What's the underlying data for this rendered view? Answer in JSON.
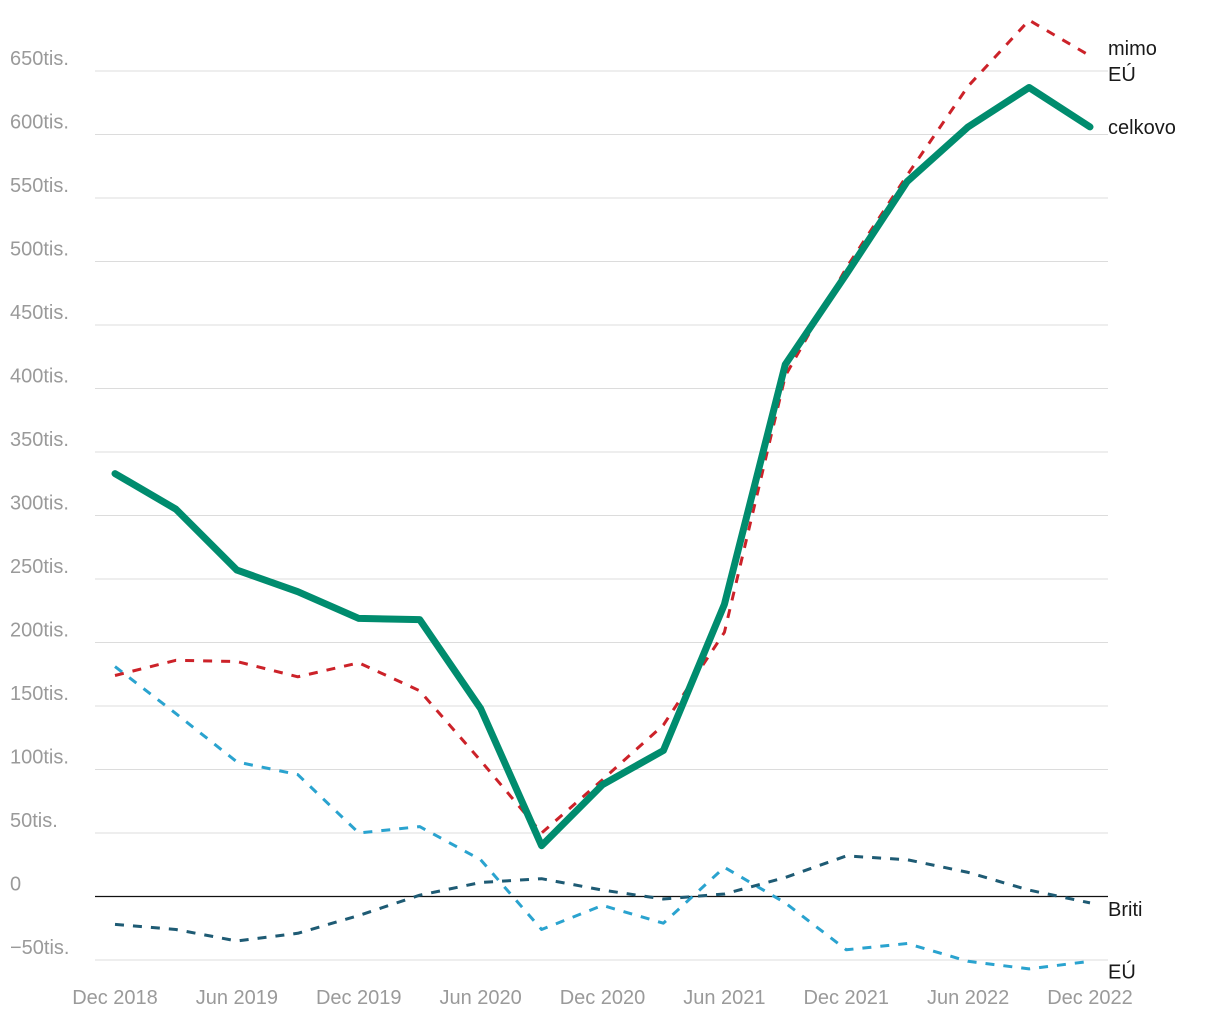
{
  "chart_data": {
    "type": "line",
    "title": "",
    "xlabel": "",
    "ylabel": "",
    "ylim": [
      -50000,
      650000
    ],
    "y_ticks": [
      {
        "value": 650000,
        "label": "650tis."
      },
      {
        "value": 600000,
        "label": "600tis."
      },
      {
        "value": 550000,
        "label": "550tis."
      },
      {
        "value": 500000,
        "label": "500tis."
      },
      {
        "value": 450000,
        "label": "450tis."
      },
      {
        "value": 400000,
        "label": "400tis."
      },
      {
        "value": 350000,
        "label": "350tis."
      },
      {
        "value": 300000,
        "label": "300tis."
      },
      {
        "value": 250000,
        "label": "250tis."
      },
      {
        "value": 200000,
        "label": "200tis."
      },
      {
        "value": 150000,
        "label": "150tis."
      },
      {
        "value": 100000,
        "label": "100tis."
      },
      {
        "value": 50000,
        "label": "50tis."
      },
      {
        "value": 0,
        "label": "0"
      },
      {
        "value": -50000,
        "label": "−50tis."
      }
    ],
    "x": [
      "Dec 2018",
      "Mar 2019",
      "Jun 2019",
      "Sep 2019",
      "Dec 2019",
      "Mar 2020",
      "Jun 2020",
      "Sep 2020",
      "Dec 2020",
      "Mar 2021",
      "Jun 2021",
      "Sep 2021",
      "Dec 2021",
      "Mar 2022",
      "Jun 2022",
      "Sep 2022",
      "Dec 2022"
    ],
    "x_tick_labels": [
      "Dec 2018",
      "Jun 2019",
      "Dec 2019",
      "Jun 2020",
      "Dec 2020",
      "Jun 2021",
      "Dec 2021",
      "Jun 2022",
      "Dec 2022"
    ],
    "grid": true,
    "series": [
      {
        "name": "mimo EÚ",
        "label_lines": [
          "mimo",
          "EÚ"
        ],
        "color": "#cc2229",
        "dash": "dashed",
        "width": 3,
        "values": [
          174000,
          186000,
          185000,
          173000,
          184000,
          162000,
          107000,
          50000,
          92000,
          135000,
          208000,
          410000,
          495000,
          568000,
          638000,
          690000,
          662000
        ]
      },
      {
        "name": "celkovo",
        "label_lines": [
          "celkovo"
        ],
        "color": "#008c6e",
        "dash": "solid",
        "width": 7,
        "values": [
          333000,
          305000,
          257000,
          240000,
          219000,
          218000,
          148000,
          40000,
          88000,
          115000,
          230000,
          419000,
          490000,
          563000,
          606000,
          637000,
          606000
        ]
      },
      {
        "name": "Briti",
        "label_lines": [
          "Briti"
        ],
        "color": "#1e5b74",
        "dash": "dashed",
        "width": 3,
        "values": [
          -22000,
          -26000,
          -35000,
          -29000,
          -15000,
          1000,
          11000,
          14000,
          5000,
          -2000,
          2000,
          15000,
          32000,
          29000,
          19000,
          5000,
          -5000
        ]
      },
      {
        "name": "EÚ",
        "label_lines": [
          "EÚ"
        ],
        "color": "#2aa3cf",
        "dash": "dashed",
        "width": 3,
        "values": [
          181000,
          144000,
          106000,
          96000,
          50000,
          55000,
          29000,
          -26000,
          -7000,
          -21000,
          23000,
          -5000,
          -42000,
          -37000,
          -51000,
          -57000,
          -51000
        ]
      }
    ]
  }
}
